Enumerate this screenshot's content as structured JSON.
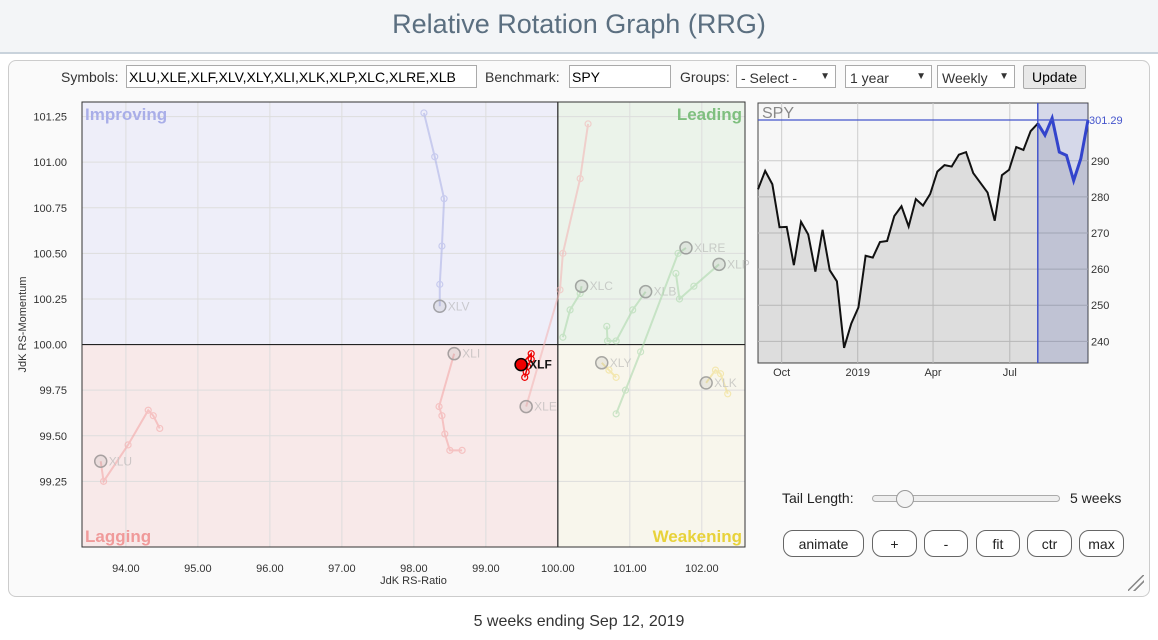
{
  "title": "Relative Rotation Graph (RRG)",
  "toolbar": {
    "symbols_label": "Symbols:",
    "symbols_value": "XLU,XLE,XLF,XLV,XLY,XLI,XLK,XLP,XLC,XLRE,XLB",
    "benchmark_label": "Benchmark:",
    "benchmark_value": "SPY",
    "groups_label": "Groups:",
    "groups_value": "- Select -",
    "period_value": "1 year",
    "frequency_value": "Weekly",
    "update_label": "Update"
  },
  "rrg": {
    "quadrants": {
      "improving": "Improving",
      "leading": "Leading",
      "lagging": "Lagging",
      "weakening": "Weakening"
    },
    "xlabel": "JdK RS-Ratio",
    "ylabel": "JdK RS-Momentum",
    "xlim": [
      93.39,
      102.6
    ],
    "ylim": [
      98.89,
      101.33
    ],
    "xticks": [
      "94.00",
      "95.00",
      "96.00",
      "97.00",
      "98.00",
      "99.00",
      "100.00",
      "101.00",
      "102.00"
    ],
    "yticks": [
      "99.25",
      "99.50",
      "99.75",
      "100.00",
      "100.25",
      "100.50",
      "100.75",
      "101.00",
      "101.25"
    ],
    "colors": {
      "improving_bg": "#eeeef9",
      "leading_bg": "#ebf3ea",
      "lagging_bg": "#f8e9e9",
      "weakening_bg": "#f8f6ec",
      "improving": "#a9aee8",
      "leading": "#7fbf7f",
      "lagging": "#f09a9a",
      "weakening": "#e8d23a"
    },
    "series": [
      {
        "name": "XLV",
        "color": "#aab0e6",
        "highlight": false,
        "points": [
          [
            98.14,
            101.27
          ],
          [
            98.29,
            101.03
          ],
          [
            98.42,
            100.8
          ],
          [
            98.39,
            100.54
          ],
          [
            98.36,
            100.33
          ],
          [
            98.36,
            100.21
          ]
        ]
      },
      {
        "name": "XLE",
        "color": "#f3b3b3",
        "highlight": false,
        "points": [
          [
            100.42,
            101.21
          ],
          [
            100.31,
            100.91
          ],
          [
            100.07,
            100.5
          ],
          [
            100.03,
            100.3
          ],
          [
            99.56,
            99.66
          ]
        ]
      },
      {
        "name": "XLI",
        "color": "#f3a3a3",
        "highlight": false,
        "points": [
          [
            98.67,
            99.42
          ],
          [
            98.5,
            99.42
          ],
          [
            98.43,
            99.51
          ],
          [
            98.39,
            99.61
          ],
          [
            98.35,
            99.66
          ],
          [
            98.56,
            99.95
          ]
        ]
      },
      {
        "name": "XLU",
        "color": "#f3a3a3",
        "highlight": false,
        "points": [
          [
            94.47,
            99.54
          ],
          [
            94.38,
            99.61
          ],
          [
            94.31,
            99.64
          ],
          [
            94.03,
            99.45
          ],
          [
            93.69,
            99.25
          ],
          [
            93.65,
            99.36
          ]
        ]
      },
      {
        "name": "XLC",
        "color": "#a8d6a8",
        "highlight": false,
        "points": [
          [
            100.07,
            100.04
          ],
          [
            100.17,
            100.19
          ],
          [
            100.31,
            100.28
          ],
          [
            100.33,
            100.32
          ]
        ]
      },
      {
        "name": "XLB",
        "color": "#a8d6a8",
        "highlight": false,
        "points": [
          [
            100.68,
            100.1
          ],
          [
            100.69,
            100.02
          ],
          [
            100.81,
            100.02
          ],
          [
            101.04,
            100.19
          ],
          [
            101.22,
            100.29
          ]
        ]
      },
      {
        "name": "XLRE",
        "color": "#a8d6a8",
        "highlight": false,
        "points": [
          [
            100.81,
            99.62
          ],
          [
            100.94,
            99.75
          ],
          [
            101.15,
            99.96
          ],
          [
            101.67,
            100.5
          ],
          [
            101.78,
            100.53
          ]
        ]
      },
      {
        "name": "XLP",
        "color": "#a8d6a8",
        "highlight": false,
        "points": [
          [
            101.64,
            100.39
          ],
          [
            101.69,
            100.25
          ],
          [
            101.89,
            100.32
          ],
          [
            102.24,
            100.44
          ]
        ]
      },
      {
        "name": "XLY",
        "color": "#f0dc80",
        "highlight": false,
        "points": [
          [
            100.81,
            99.82
          ],
          [
            100.71,
            99.86
          ],
          [
            100.61,
            99.9
          ]
        ]
      },
      {
        "name": "XLK",
        "color": "#f0dc80",
        "highlight": false,
        "points": [
          [
            102.36,
            99.73
          ],
          [
            102.26,
            99.84
          ],
          [
            102.19,
            99.86
          ],
          [
            102.06,
            99.79
          ]
        ]
      },
      {
        "name": "XLF",
        "color": "#ee0000",
        "highlight": true,
        "points": [
          [
            99.54,
            99.82
          ],
          [
            99.56,
            99.85
          ],
          [
            99.58,
            99.88
          ],
          [
            99.63,
            99.92
          ],
          [
            99.63,
            99.95
          ],
          [
            99.49,
            99.89
          ]
        ]
      }
    ]
  },
  "benchmark_chart": {
    "symbol": "SPY",
    "last_value": "301.29",
    "ylim": [
      234,
      306
    ],
    "yticks": [
      "240",
      "250",
      "260",
      "270",
      "280",
      "290"
    ],
    "xticks": [
      {
        "label": "Oct",
        "idx": 3.3
      },
      {
        "label": "2019",
        "idx": 13.9
      },
      {
        "label": "Apr",
        "idx": 24.4
      },
      {
        "label": "Jul",
        "idx": 35.1
      }
    ],
    "highlight_start_idx": 39,
    "prices": [
      282.1,
      287.2,
      283.5,
      271.6,
      271.7,
      261.1,
      273.1,
      269.6,
      259.3,
      270.9,
      259.7,
      256.6,
      238.2,
      244.9,
      249.4,
      263.7,
      263.2,
      267.5,
      267.8,
      274.7,
      277.4,
      271.8,
      279.4,
      277.6,
      280.8,
      287.0,
      288.8,
      288.4,
      291.7,
      292.4,
      286.6,
      283.9,
      281.2,
      273.4,
      286.0,
      287.5,
      293.8,
      293.0,
      298.2,
      300.3,
      297.1,
      301.8,
      292.4,
      291.5,
      284.5,
      290.6,
      301.29
    ]
  },
  "controls": {
    "tail_length_label": "Tail Length:",
    "tail_length_value": "5 weeks",
    "tail_length_fraction": 0.17,
    "buttons": {
      "animate": "animate",
      "plus": "+",
      "minus": "-",
      "fit": "fit",
      "ctr": "ctr",
      "max": "max"
    }
  },
  "footer": "5 weeks ending Sep 12, 2019"
}
